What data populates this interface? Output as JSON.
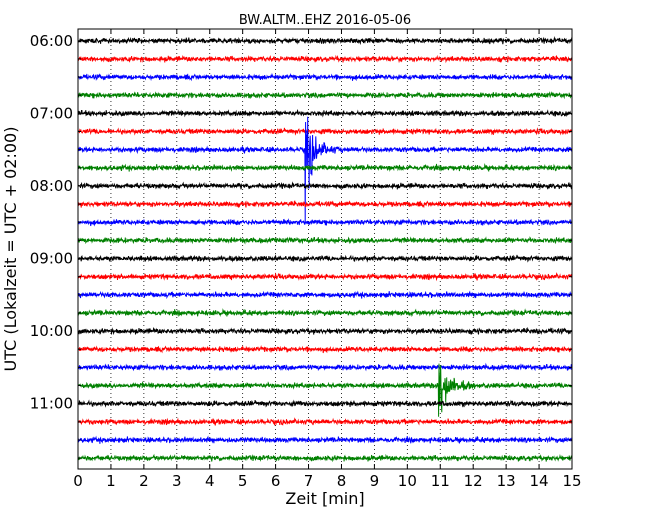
{
  "chart_data": {
    "type": "line",
    "title": "BW.ALTM..EHZ 2016-05-06",
    "xlabel": "Zeit  [min]",
    "ylabel": "UTC (Lokalzeit = UTC + 02:00)",
    "xlim": [
      0,
      15
    ],
    "x_ticks": [
      0,
      1,
      2,
      3,
      4,
      5,
      6,
      7,
      8,
      9,
      10,
      11,
      12,
      13,
      14,
      15
    ],
    "y_tick_labels": [
      "06:00",
      "07:00",
      "08:00",
      "09:00",
      "10:00",
      "11:00"
    ],
    "trace_start_hour": "06:00",
    "trace_minutes": 15,
    "trace_count": 24,
    "trace_colors": [
      "#000000",
      "#ff0000",
      "#0000ff",
      "#008000"
    ],
    "grid": "vertical-dotted",
    "events": [
      {
        "trace_start": "07:30",
        "minute": 6.9
      },
      {
        "trace_start": "10:45",
        "minute": 10.95
      }
    ]
  }
}
